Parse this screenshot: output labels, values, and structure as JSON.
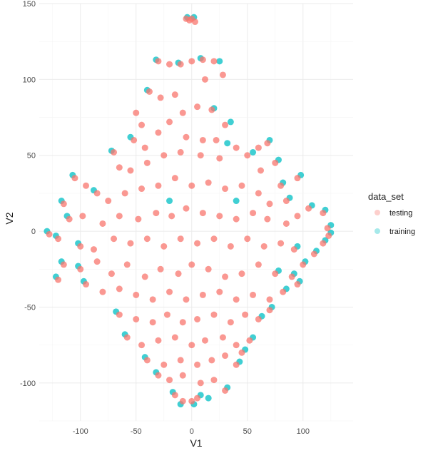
{
  "chart_data": {
    "type": "scatter",
    "title": "",
    "xlabel": "V1",
    "ylabel": "V2",
    "xlim": [
      -137,
      145
    ],
    "ylim": [
      -125,
      150
    ],
    "x_ticks": [
      -100,
      -50,
      0,
      50,
      100
    ],
    "y_ticks": [
      -100,
      -50,
      0,
      50,
      100,
      150
    ],
    "grid": true,
    "legend": {
      "title": "data_set",
      "position": "right"
    },
    "series": [
      {
        "name": "testing",
        "color": "#F8766D",
        "points": [
          [
            -5,
            140
          ],
          [
            0,
            140
          ],
          [
            -2,
            139
          ],
          [
            3,
            138
          ],
          [
            -30,
            112
          ],
          [
            -20,
            110
          ],
          [
            -10,
            110
          ],
          [
            0,
            112
          ],
          [
            10,
            113
          ],
          [
            20,
            112
          ],
          [
            28,
            103
          ],
          [
            12,
            100
          ],
          [
            -38,
            92
          ],
          [
            -28,
            88
          ],
          [
            -15,
            90
          ],
          [
            -50,
            78
          ],
          [
            -45,
            70
          ],
          [
            -52,
            60
          ],
          [
            -42,
            55
          ],
          [
            -30,
            65
          ],
          [
            -20,
            72
          ],
          [
            -8,
            78
          ],
          [
            5,
            82
          ],
          [
            18,
            80
          ],
          [
            30,
            70
          ],
          [
            22,
            60
          ],
          [
            10,
            60
          ],
          [
            -5,
            62
          ],
          [
            -70,
            52
          ],
          [
            -65,
            42
          ],
          [
            -55,
            40
          ],
          [
            -40,
            45
          ],
          [
            -25,
            50
          ],
          [
            -10,
            52
          ],
          [
            8,
            50
          ],
          [
            25,
            48
          ],
          [
            40,
            55
          ],
          [
            50,
            50
          ],
          [
            60,
            55
          ],
          [
            68,
            58
          ],
          [
            75,
            45
          ],
          [
            62,
            40
          ],
          [
            -105,
            35
          ],
          [
            -95,
            30
          ],
          [
            -85,
            25
          ],
          [
            -75,
            20
          ],
          [
            -60,
            25
          ],
          [
            -45,
            28
          ],
          [
            -30,
            30
          ],
          [
            -15,
            35
          ],
          [
            0,
            30
          ],
          [
            15,
            32
          ],
          [
            30,
            28
          ],
          [
            45,
            30
          ],
          [
            60,
            25
          ],
          [
            80,
            30
          ],
          [
            95,
            35
          ],
          [
            85,
            20
          ],
          [
            70,
            18
          ],
          [
            -115,
            18
          ],
          [
            -110,
            8
          ],
          [
            -98,
            10
          ],
          [
            -80,
            5
          ],
          [
            -65,
            10
          ],
          [
            -48,
            8
          ],
          [
            -32,
            12
          ],
          [
            -18,
            10
          ],
          [
            -5,
            15
          ],
          [
            10,
            12
          ],
          [
            25,
            10
          ],
          [
            40,
            8
          ],
          [
            55,
            12
          ],
          [
            68,
            8
          ],
          [
            85,
            5
          ],
          [
            95,
            10
          ],
          [
            105,
            15
          ],
          [
            118,
            12
          ],
          [
            122,
            2
          ],
          [
            -128,
            -2
          ],
          [
            -120,
            -5
          ],
          [
            -100,
            -10
          ],
          [
            -88,
            -12
          ],
          [
            -70,
            -5
          ],
          [
            -55,
            -8
          ],
          [
            -40,
            -5
          ],
          [
            -25,
            -10
          ],
          [
            -10,
            -5
          ],
          [
            5,
            -8
          ],
          [
            20,
            -5
          ],
          [
            35,
            -10
          ],
          [
            50,
            -5
          ],
          [
            65,
            -10
          ],
          [
            80,
            -8
          ],
          [
            92,
            -12
          ],
          [
            110,
            -15
          ],
          [
            118,
            -8
          ],
          [
            123,
            -3
          ],
          [
            -115,
            -22
          ],
          [
            -100,
            -25
          ],
          [
            -85,
            -20
          ],
          [
            -72,
            -28
          ],
          [
            -58,
            -22
          ],
          [
            -42,
            -30
          ],
          [
            -28,
            -25
          ],
          [
            -12,
            -28
          ],
          [
            0,
            -22
          ],
          [
            15,
            -25
          ],
          [
            30,
            -30
          ],
          [
            45,
            -28
          ],
          [
            60,
            -22
          ],
          [
            75,
            -28
          ],
          [
            90,
            -30
          ],
          [
            100,
            -22
          ],
          [
            -120,
            -32
          ],
          [
            -95,
            -35
          ],
          [
            -80,
            -40
          ],
          [
            -65,
            -38
          ],
          [
            -50,
            -42
          ],
          [
            -35,
            -45
          ],
          [
            -20,
            -40
          ],
          [
            -5,
            -45
          ],
          [
            10,
            -42
          ],
          [
            25,
            -40
          ],
          [
            40,
            -45
          ],
          [
            55,
            -42
          ],
          [
            70,
            -45
          ],
          [
            82,
            -40
          ],
          [
            95,
            -35
          ],
          [
            -65,
            -55
          ],
          [
            -50,
            -58
          ],
          [
            -35,
            -60
          ],
          [
            -22,
            -55
          ],
          [
            -8,
            -60
          ],
          [
            5,
            -58
          ],
          [
            20,
            -55
          ],
          [
            35,
            -60
          ],
          [
            48,
            -55
          ],
          [
            60,
            -58
          ],
          [
            70,
            -52
          ],
          [
            -58,
            -70
          ],
          [
            -45,
            -75
          ],
          [
            -30,
            -72
          ],
          [
            -15,
            -70
          ],
          [
            0,
            -75
          ],
          [
            12,
            -72
          ],
          [
            28,
            -70
          ],
          [
            40,
            -75
          ],
          [
            52,
            -72
          ],
          [
            45,
            -80
          ],
          [
            -40,
            -85
          ],
          [
            -25,
            -88
          ],
          [
            -10,
            -85
          ],
          [
            5,
            -88
          ],
          [
            18,
            -85
          ],
          [
            30,
            -82
          ],
          [
            40,
            -88
          ],
          [
            -30,
            -95
          ],
          [
            -20,
            -98
          ],
          [
            -8,
            -95
          ],
          [
            8,
            -100
          ],
          [
            20,
            -98
          ],
          [
            30,
            -105
          ],
          [
            -15,
            -108
          ],
          [
            0,
            -112
          ],
          [
            -8,
            -112
          ],
          [
            5,
            -110
          ]
        ]
      },
      {
        "name": "training",
        "color": "#00BFC4",
        "points": [
          [
            -4,
            141
          ],
          [
            2,
            141
          ],
          [
            -32,
            113
          ],
          [
            -12,
            111
          ],
          [
            8,
            114
          ],
          [
            25,
            112
          ],
          [
            -40,
            93
          ],
          [
            20,
            81
          ],
          [
            -55,
            62
          ],
          [
            35,
            72
          ],
          [
            32,
            58
          ],
          [
            -72,
            53
          ],
          [
            55,
            52
          ],
          [
            70,
            60
          ],
          [
            78,
            47
          ],
          [
            -107,
            37
          ],
          [
            -88,
            27
          ],
          [
            82,
            32
          ],
          [
            98,
            37
          ],
          [
            88,
            22
          ],
          [
            -117,
            20
          ],
          [
            -112,
            10
          ],
          [
            108,
            17
          ],
          [
            120,
            14
          ],
          [
            125,
            4
          ],
          [
            -130,
            0
          ],
          [
            -122,
            -3
          ],
          [
            -102,
            -8
          ],
          [
            95,
            -10
          ],
          [
            112,
            -13
          ],
          [
            120,
            -6
          ],
          [
            125,
            -1
          ],
          [
            -117,
            -20
          ],
          [
            -102,
            -23
          ],
          [
            78,
            -26
          ],
          [
            92,
            -28
          ],
          [
            102,
            -20
          ],
          [
            -122,
            -30
          ],
          [
            -97,
            -33
          ],
          [
            85,
            -38
          ],
          [
            97,
            -33
          ],
          [
            -68,
            -53
          ],
          [
            63,
            -56
          ],
          [
            72,
            -50
          ],
          [
            -60,
            -68
          ],
          [
            55,
            -70
          ],
          [
            48,
            -78
          ],
          [
            -42,
            -83
          ],
          [
            43,
            -86
          ],
          [
            -32,
            -93
          ],
          [
            32,
            -103
          ],
          [
            -17,
            -106
          ],
          [
            2,
            -114
          ],
          [
            -10,
            -114
          ],
          [
            8,
            -108
          ],
          [
            15,
            -110
          ],
          [
            40,
            20
          ],
          [
            -20,
            20
          ]
        ]
      }
    ]
  }
}
